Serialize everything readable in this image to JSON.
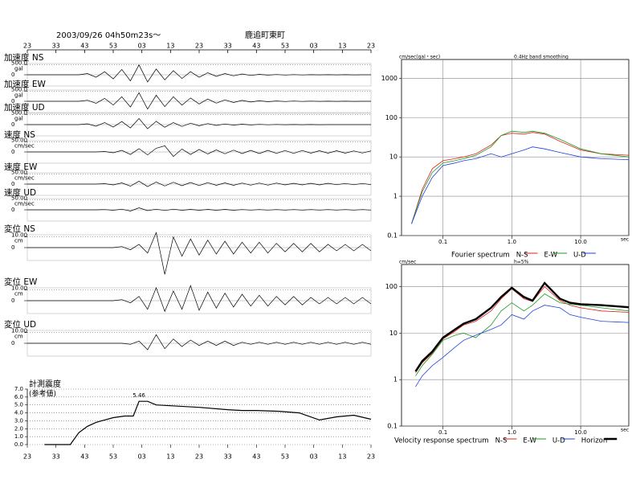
{
  "chart_data": [
    {
      "type": "waveform",
      "title": "鹿追町東町",
      "subtitle": "2003/09/26  04h50m23s～",
      "color": "#000000",
      "x": [
        0,
        3,
        6,
        9,
        12,
        15,
        18,
        21,
        24,
        27,
        30,
        33,
        36,
        39,
        42,
        45,
        48,
        51,
        54,
        57,
        60,
        63,
        66,
        69,
        72,
        75,
        78,
        81,
        84,
        87,
        90,
        93,
        96,
        99,
        102,
        105,
        108,
        111,
        114,
        117,
        120
      ],
      "xlim": [
        0,
        120
      ],
      "xticks": [
        {
          "value": 0,
          "label": "23"
        },
        {
          "value": 10,
          "label": "33"
        },
        {
          "value": 20,
          "label": "43"
        },
        {
          "value": 30,
          "label": "53"
        },
        {
          "value": 40,
          "label": "03"
        },
        {
          "value": 50,
          "label": "13"
        },
        {
          "value": 60,
          "label": "23"
        },
        {
          "value": 70,
          "label": "33"
        },
        {
          "value": 80,
          "label": "43"
        },
        {
          "value": 90,
          "label": "53"
        },
        {
          "value": 100,
          "label": "03"
        },
        {
          "value": 110,
          "label": "13"
        },
        {
          "value": 120,
          "label": "23"
        }
      ],
      "series": [
        {
          "name": "加速度 NS",
          "unit": "gal",
          "ylim": [
            -550,
            550
          ],
          "yticks": [
            0,
            {
              "value": 500,
              "label": "500.0"
            }
          ],
          "values": [
            0,
            0,
            0,
            0,
            0,
            0,
            0,
            60,
            -120,
            150,
            -200,
            260,
            -300,
            480,
            -350,
            280,
            -250,
            200,
            -180,
            150,
            -120,
            100,
            -80,
            60,
            -50,
            40,
            -30,
            20,
            -15,
            10,
            -10,
            8,
            -6,
            5,
            -5,
            4,
            -3,
            2,
            -2,
            0,
            0
          ]
        },
        {
          "name": "加速度 EW",
          "unit": "gal",
          "ylim": [
            -550,
            550
          ],
          "yticks": [
            0,
            {
              "value": 500,
              "label": "500.0"
            }
          ],
          "values": [
            0,
            0,
            0,
            0,
            0,
            0,
            0,
            50,
            -100,
            140,
            -180,
            220,
            -280,
            420,
            -380,
            300,
            -260,
            220,
            -190,
            160,
            -130,
            110,
            -90,
            70,
            -60,
            45,
            -35,
            25,
            -20,
            15,
            -12,
            10,
            -8,
            6,
            -5,
            4,
            -3,
            2,
            -2,
            0,
            0
          ]
        },
        {
          "name": "加速度 UD",
          "unit": "gal",
          "ylim": [
            -550,
            550
          ],
          "yticks": [
            0,
            {
              "value": 500,
              "label": "500.0"
            }
          ],
          "values": [
            0,
            0,
            0,
            0,
            0,
            0,
            0,
            40,
            -80,
            100,
            -120,
            150,
            -160,
            300,
            -200,
            160,
            -130,
            100,
            -90,
            70,
            -60,
            50,
            -40,
            30,
            -25,
            20,
            -15,
            10,
            -8,
            6,
            -5,
            4,
            -3,
            2,
            -2,
            0,
            0,
            0,
            0,
            0,
            0
          ]
        },
        {
          "name": "速度 NS",
          "unit": "cm/sec",
          "ylim": [
            -55,
            55
          ],
          "yticks": [
            0,
            {
              "value": 50,
              "label": "50.00"
            }
          ],
          "values": [
            0,
            0,
            0,
            0,
            0,
            0,
            0,
            0,
            0,
            2,
            -4,
            8,
            -12,
            16,
            -14,
            18,
            30,
            -22,
            14,
            -12,
            12,
            -10,
            10,
            -9,
            9,
            -8,
            8,
            -8,
            8,
            -7,
            7,
            -7,
            7,
            -6,
            6,
            -6,
            6,
            -6,
            5,
            -5,
            5
          ]
        },
        {
          "name": "速度 EW",
          "unit": "cm/sec",
          "ylim": [
            -55,
            55
          ],
          "yticks": [
            0,
            {
              "value": 50,
              "label": "50.00"
            }
          ],
          "values": [
            0,
            0,
            0,
            0,
            0,
            0,
            0,
            0,
            0,
            2,
            -4,
            6,
            -10,
            14,
            -12,
            10,
            -9,
            9,
            -8,
            8,
            -7,
            7,
            -6,
            6,
            -6,
            5,
            -5,
            5,
            -5,
            5,
            -4,
            4,
            -4,
            4,
            -4,
            4,
            -3,
            3,
            -3,
            3,
            -3
          ]
        },
        {
          "name": "速度 UD",
          "unit": "cm/sec",
          "ylim": [
            -55,
            55
          ],
          "yticks": [
            0,
            {
              "value": 50,
              "label": "50.00"
            }
          ],
          "values": [
            0,
            0,
            0,
            0,
            0,
            0,
            0,
            0,
            0,
            1,
            -2,
            3,
            -6,
            10,
            -4,
            3,
            -3,
            3,
            -2,
            2,
            -2,
            2,
            -2,
            2,
            -2,
            1,
            -1,
            1,
            -1,
            1,
            -1,
            1,
            -1,
            1,
            -1,
            1,
            -1,
            1,
            -1,
            1,
            -1
          ]
        },
        {
          "name": "変位 NS",
          "unit": "cm",
          "ylim": [
            -12,
            12
          ],
          "yticks": [
            0,
            {
              "value": 10,
              "label": "10.00"
            }
          ],
          "values": [
            0,
            0,
            0,
            0,
            0,
            0,
            0,
            0,
            0,
            0,
            0,
            1,
            -2,
            3,
            -5,
            14,
            -25,
            10,
            -8,
            8,
            -7,
            7,
            -6,
            6,
            -6,
            5,
            -5,
            5,
            -5,
            4,
            -4,
            4,
            -4,
            4,
            -4,
            3,
            -3,
            3,
            -3,
            3,
            -3
          ]
        },
        {
          "name": "変位 EW",
          "unit": "cm",
          "ylim": [
            -12,
            12
          ],
          "yticks": [
            0,
            {
              "value": 10,
              "label": "10.00"
            }
          ],
          "values": [
            0,
            0,
            0,
            0,
            0,
            0,
            0,
            0,
            0,
            0,
            0,
            1,
            -2,
            4,
            -8,
            12,
            -10,
            9,
            -8,
            14,
            -9,
            8,
            -7,
            7,
            -6,
            6,
            -5,
            5,
            -5,
            4,
            -4,
            4,
            -4,
            3,
            -3,
            3,
            -3,
            3,
            -3,
            3,
            -3
          ]
        },
        {
          "name": "変位 UD",
          "unit": "cm",
          "ylim": [
            -12,
            12
          ],
          "yticks": [
            0,
            {
              "value": 10,
              "label": "10.00"
            }
          ],
          "values": [
            0,
            0,
            0,
            0,
            0,
            0,
            0,
            0,
            0,
            0,
            0,
            0,
            -1,
            2,
            -6,
            8,
            -5,
            4,
            -3,
            3,
            -2,
            2,
            -2,
            2,
            -2,
            1,
            -1,
            1,
            -1,
            1,
            -1,
            1,
            -1,
            1,
            -1,
            1,
            -1,
            1,
            -1,
            1,
            -1
          ]
        }
      ]
    },
    {
      "type": "line",
      "title": "計測震度",
      "subtitle": "(参考値)",
      "color": "#000000",
      "grid": "y",
      "x": [
        6,
        15,
        18,
        21,
        24,
        27,
        30,
        34,
        37,
        39,
        42,
        45,
        50,
        60,
        70,
        75,
        80,
        88,
        95,
        102,
        108,
        114,
        120
      ],
      "values": [
        0,
        0,
        1.5,
        2.3,
        2.8,
        3.1,
        3.4,
        3.6,
        3.6,
        5.46,
        5.46,
        5.0,
        4.9,
        4.7,
        4.4,
        4.3,
        4.3,
        4.2,
        4.0,
        3.1,
        3.5,
        3.7,
        3.2
      ],
      "xlim": [
        0,
        120
      ],
      "xticks": [
        {
          "value": 0,
          "label": "23"
        },
        {
          "value": 10,
          "label": "33"
        },
        {
          "value": 20,
          "label": "43"
        },
        {
          "value": 30,
          "label": "53"
        },
        {
          "value": 40,
          "label": "03"
        },
        {
          "value": 50,
          "label": "13"
        },
        {
          "value": 60,
          "label": "23"
        },
        {
          "value": 70,
          "label": "33"
        },
        {
          "value": 80,
          "label": "43"
        },
        {
          "value": 90,
          "label": "53"
        },
        {
          "value": 100,
          "label": "03"
        },
        {
          "value": 110,
          "label": "13"
        },
        {
          "value": 120,
          "label": "23"
        }
      ],
      "ylim": [
        0,
        7
      ],
      "yticks": [
        {
          "value": 0,
          "label": "0.0"
        },
        {
          "value": 1,
          "label": "1.0"
        },
        {
          "value": 2,
          "label": "2.0"
        },
        {
          "value": 3,
          "label": "3.0"
        },
        {
          "value": 4,
          "label": "4.0"
        },
        {
          "value": 5,
          "label": "5.0"
        },
        {
          "value": 6,
          "label": "6.0"
        },
        {
          "value": 7,
          "label": "7.0"
        }
      ],
      "annotations": [
        {
          "label": "5.46",
          "x": 39,
          "y": 5.46
        }
      ]
    },
    {
      "type": "line",
      "log": true,
      "grid": "both",
      "title": "Fourier spectrum",
      "subtitle": "0.4Hz band smoothing",
      "ylabel": "cm/sec(gal・sec)",
      "xlabel": "sec",
      "x": [
        0.035,
        0.05,
        0.07,
        0.1,
        0.15,
        0.2,
        0.3,
        0.5,
        0.7,
        1,
        1.5,
        2,
        3,
        5,
        10,
        20,
        50
      ],
      "xlim": [
        0.025,
        50
      ],
      "ylim": [
        0.1,
        3000
      ],
      "xticks": [
        0.1,
        {
          "value": 1,
          "label": "1.0"
        },
        {
          "value": 10,
          "label": "10.0"
        }
      ],
      "yticks": [
        0.1,
        1,
        10,
        100,
        1000
      ],
      "series": [
        {
          "name": "N-S",
          "color": "#e0201b",
          "values": [
            0.2,
            1.5,
            5,
            8,
            9,
            10,
            12,
            20,
            35,
            40,
            38,
            42,
            38,
            25,
            15,
            12,
            11
          ]
        },
        {
          "name": "E-W",
          "color": "#1a9a1a",
          "values": [
            0.2,
            1.3,
            4,
            7,
            8,
            9,
            11,
            18,
            35,
            45,
            42,
            45,
            40,
            28,
            16,
            12,
            10
          ]
        },
        {
          "name": "U-D",
          "color": "#2040e0",
          "values": [
            0.2,
            1,
            3,
            6,
            7,
            8,
            9,
            12,
            10,
            12,
            15,
            18,
            16,
            13,
            10,
            9,
            8.5
          ]
        }
      ]
    },
    {
      "type": "line",
      "log": true,
      "grid": "both",
      "title": "Velocity response spectrum",
      "subtitle": "h=5%",
      "ylabel": "cm/sec",
      "xlabel": "sec",
      "x": [
        0.04,
        0.05,
        0.07,
        0.1,
        0.15,
        0.2,
        0.3,
        0.5,
        0.7,
        1,
        1.5,
        2,
        3,
        5,
        7,
        10,
        20,
        50
      ],
      "xlim": [
        0.025,
        50
      ],
      "ylim": [
        0.1,
        300
      ],
      "xticks": [
        0.1,
        {
          "value": 1,
          "label": "1.0"
        },
        {
          "value": 10,
          "label": "10.0"
        }
      ],
      "yticks": [
        0.1,
        1,
        10,
        100
      ],
      "series": [
        {
          "name": "N-S",
          "color": "#e0201b",
          "values": [
            1.4,
            2.3,
            3.7,
            7.5,
            11,
            15,
            18,
            30,
            55,
            90,
            55,
            48,
            100,
            50,
            40,
            35,
            30,
            28
          ]
        },
        {
          "name": "E-W",
          "color": "#1a9a1a",
          "values": [
            1.2,
            2,
            3.5,
            7,
            9,
            10,
            8,
            15,
            30,
            45,
            30,
            40,
            70,
            45,
            42,
            40,
            35,
            30
          ]
        },
        {
          "name": "U-D",
          "color": "#2040e0",
          "values": [
            0.7,
            1.2,
            2,
            3,
            5,
            7,
            9,
            12,
            15,
            25,
            20,
            30,
            40,
            35,
            25,
            22,
            18,
            17
          ]
        },
        {
          "name": "Horizon",
          "color": "#000000",
          "bold": true,
          "values": [
            1.5,
            2.5,
            4,
            8,
            12,
            16,
            20,
            35,
            60,
            95,
            60,
            50,
            120,
            55,
            45,
            42,
            40,
            36
          ]
        }
      ]
    }
  ]
}
